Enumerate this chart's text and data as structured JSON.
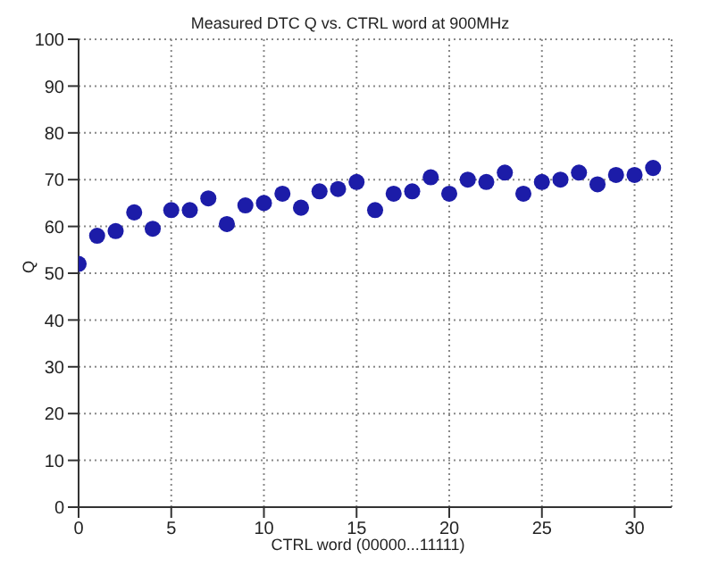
{
  "chart_data": {
    "type": "scatter",
    "title": "Measured DTC Q vs. CTRL word  at 900MHz",
    "xlabel": "CTRL word (00000...11111)",
    "ylabel": "Q",
    "x": [
      0,
      1,
      2,
      3,
      4,
      5,
      6,
      7,
      8,
      9,
      10,
      11,
      12,
      13,
      14,
      15,
      16,
      17,
      18,
      19,
      20,
      21,
      22,
      23,
      24,
      25,
      26,
      27,
      28,
      29,
      30,
      31
    ],
    "series": [
      {
        "color": "#1c1ca8",
        "values": [
          52,
          58,
          59,
          63,
          59.5,
          63.5,
          63.5,
          66,
          60.5,
          64.5,
          65,
          67,
          64,
          67.5,
          68,
          69.5,
          63.5,
          67,
          67.5,
          70.5,
          67,
          70,
          69.5,
          71.5,
          67,
          69.5,
          70,
          71.5,
          69,
          71,
          71,
          72.5
        ]
      }
    ],
    "xlim": [
      0,
      32
    ],
    "xticks": [
      0,
      5,
      10,
      15,
      20,
      25,
      30
    ],
    "ylim": [
      0,
      100
    ],
    "yticks": [
      0,
      10,
      20,
      30,
      40,
      50,
      60,
      70,
      80,
      90,
      100
    ],
    "grid": true,
    "marker": "circle"
  }
}
